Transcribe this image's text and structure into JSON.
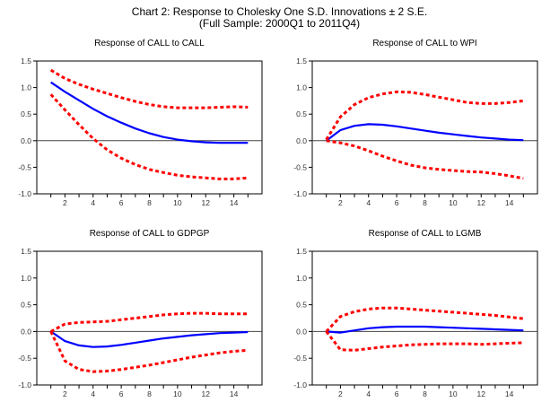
{
  "chart_data": [
    {
      "type": "line",
      "title": "Response of CALL to CALL",
      "x": [
        1,
        2,
        3,
        4,
        5,
        6,
        7,
        8,
        9,
        10,
        11,
        12,
        13,
        14,
        15
      ],
      "xticks": [
        "2",
        "4",
        "6",
        "8",
        "10",
        "12",
        "14"
      ],
      "yticks": [
        "1.5",
        "1.0",
        "0.5",
        "0.0",
        "-0.5",
        "-1.0"
      ],
      "ylim": [
        -1.0,
        1.5
      ],
      "xlim": [
        0,
        16
      ],
      "series": [
        {
          "name": "response",
          "style": "solid",
          "color": "#0000ff",
          "values": [
            1.1,
            0.92,
            0.76,
            0.6,
            0.46,
            0.34,
            0.23,
            0.14,
            0.07,
            0.02,
            -0.01,
            -0.03,
            -0.04,
            -0.04,
            -0.04
          ]
        },
        {
          "name": "upper",
          "style": "dashed",
          "color": "#ff0000",
          "values": [
            1.33,
            1.17,
            1.06,
            0.97,
            0.89,
            0.81,
            0.74,
            0.68,
            0.64,
            0.62,
            0.62,
            0.62,
            0.63,
            0.64,
            0.63
          ]
        },
        {
          "name": "lower",
          "style": "dashed",
          "color": "#ff0000",
          "values": [
            0.87,
            0.58,
            0.3,
            0.04,
            -0.17,
            -0.33,
            -0.45,
            -0.54,
            -0.6,
            -0.65,
            -0.68,
            -0.7,
            -0.72,
            -0.72,
            -0.7
          ]
        }
      ]
    },
    {
      "type": "line",
      "title": "Response of CALL to WPI",
      "x": [
        1,
        2,
        3,
        4,
        5,
        6,
        7,
        8,
        9,
        10,
        11,
        12,
        13,
        14,
        15
      ],
      "xticks": [
        "2",
        "4",
        "6",
        "8",
        "10",
        "12",
        "14"
      ],
      "yticks": [
        "1.5",
        "1.0",
        "0.5",
        "0.0",
        "-0.5",
        "-1.0"
      ],
      "ylim": [
        -1.0,
        1.5
      ],
      "xlim": [
        0,
        16
      ],
      "series": [
        {
          "name": "response",
          "style": "solid",
          "color": "#0000ff",
          "values": [
            0.0,
            0.2,
            0.28,
            0.31,
            0.3,
            0.27,
            0.23,
            0.19,
            0.15,
            0.12,
            0.09,
            0.06,
            0.04,
            0.02,
            0.01
          ]
        },
        {
          "name": "upper",
          "style": "dashed",
          "color": "#ff0000",
          "values": [
            0.02,
            0.45,
            0.68,
            0.81,
            0.88,
            0.92,
            0.91,
            0.87,
            0.82,
            0.77,
            0.72,
            0.7,
            0.7,
            0.72,
            0.75
          ]
        },
        {
          "name": "lower",
          "style": "dashed",
          "color": "#ff0000",
          "values": [
            0.0,
            -0.04,
            -0.1,
            -0.19,
            -0.29,
            -0.38,
            -0.46,
            -0.51,
            -0.54,
            -0.56,
            -0.58,
            -0.59,
            -0.62,
            -0.66,
            -0.71
          ]
        }
      ]
    },
    {
      "type": "line",
      "title": "Response of CALL to GDPGP",
      "x": [
        1,
        2,
        3,
        4,
        5,
        6,
        7,
        8,
        9,
        10,
        11,
        12,
        13,
        14,
        15
      ],
      "xticks": [
        "2",
        "4",
        "6",
        "8",
        "10",
        "12",
        "14"
      ],
      "yticks": [
        "1.5",
        "1.0",
        "0.5",
        "0.0",
        "-0.5",
        "-1.0"
      ],
      "ylim": [
        -1.0,
        1.5
      ],
      "xlim": [
        0,
        16
      ],
      "series": [
        {
          "name": "response",
          "style": "solid",
          "color": "#0000ff",
          "values": [
            0.0,
            -0.18,
            -0.26,
            -0.29,
            -0.28,
            -0.25,
            -0.21,
            -0.17,
            -0.13,
            -0.1,
            -0.07,
            -0.05,
            -0.03,
            -0.02,
            -0.01
          ]
        },
        {
          "name": "upper",
          "style": "dashed",
          "color": "#ff0000",
          "values": [
            0.0,
            0.14,
            0.17,
            0.18,
            0.19,
            0.22,
            0.25,
            0.28,
            0.31,
            0.33,
            0.34,
            0.34,
            0.33,
            0.33,
            0.33
          ]
        },
        {
          "name": "lower",
          "style": "dashed",
          "color": "#ff0000",
          "values": [
            0.0,
            -0.55,
            -0.71,
            -0.75,
            -0.74,
            -0.71,
            -0.67,
            -0.63,
            -0.58,
            -0.53,
            -0.48,
            -0.44,
            -0.4,
            -0.37,
            -0.35
          ]
        }
      ]
    },
    {
      "type": "line",
      "title": "Response of CALL to LGMB",
      "x": [
        1,
        2,
        3,
        4,
        5,
        6,
        7,
        8,
        9,
        10,
        11,
        12,
        13,
        14,
        15
      ],
      "xticks": [
        "2",
        "4",
        "6",
        "8",
        "10",
        "12",
        "14"
      ],
      "yticks": [
        "1.5",
        "1.0",
        "0.5",
        "0.0",
        "-0.5",
        "-1.0"
      ],
      "ylim": [
        -1.0,
        1.5
      ],
      "xlim": [
        0,
        16
      ],
      "series": [
        {
          "name": "response",
          "style": "solid",
          "color": "#0000ff",
          "values": [
            0.0,
            -0.02,
            0.02,
            0.06,
            0.08,
            0.09,
            0.09,
            0.09,
            0.08,
            0.07,
            0.06,
            0.05,
            0.04,
            0.03,
            0.02
          ]
        },
        {
          "name": "upper",
          "style": "dashed",
          "color": "#ff0000",
          "values": [
            0.0,
            0.28,
            0.37,
            0.42,
            0.44,
            0.44,
            0.42,
            0.4,
            0.38,
            0.36,
            0.34,
            0.32,
            0.3,
            0.27,
            0.24
          ]
        },
        {
          "name": "lower",
          "style": "dashed",
          "color": "#ff0000",
          "values": [
            0.0,
            -0.34,
            -0.35,
            -0.32,
            -0.29,
            -0.27,
            -0.25,
            -0.24,
            -0.23,
            -0.23,
            -0.23,
            -0.24,
            -0.23,
            -0.22,
            -0.21
          ]
        }
      ]
    }
  ],
  "figure": {
    "title_line1": "Chart 2: Response to Cholesky One S.D. Innovations ± 2 S.E.",
    "title_line2": "(Full Sample: 2000Q1 to 2011Q4)"
  }
}
